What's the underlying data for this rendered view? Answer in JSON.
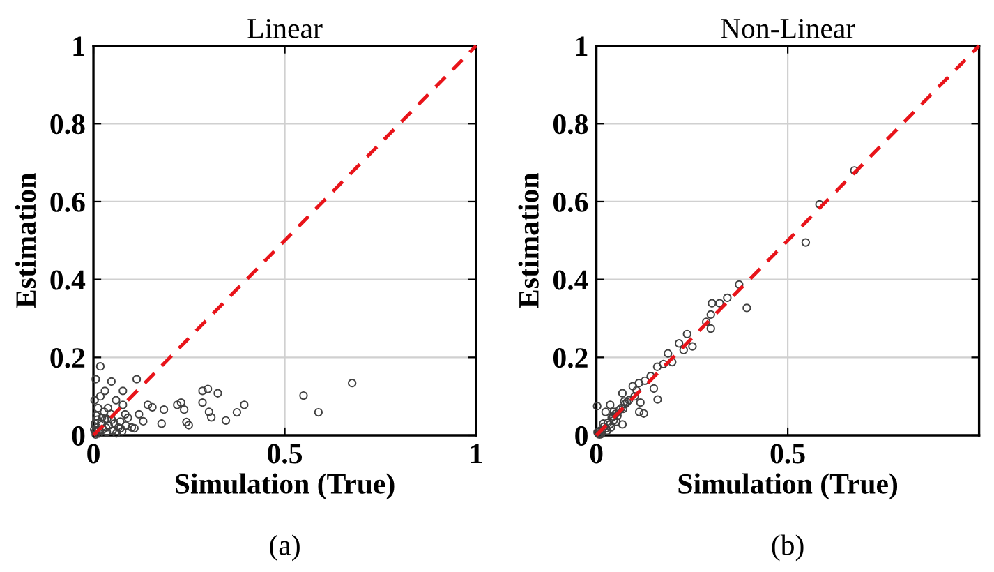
{
  "chart_data": [
    {
      "type": "scatter",
      "title": "Linear",
      "xlabel": "Simulation (True)",
      "ylabel": "Estimation",
      "annotations": [
        "(a)"
      ],
      "xlim": [
        0,
        1
      ],
      "ylim": [
        0,
        1
      ],
      "xticks": [
        0,
        0.5,
        1
      ],
      "yticks": [
        0,
        0.2,
        0.4,
        0.6,
        0.8,
        1
      ],
      "grid": true,
      "marker": "circle",
      "series": [
        {
          "color": "#404040",
          "x": [
            0.018,
            0.006,
            0.047,
            0.113,
            0.077,
            0.03,
            0.285,
            0.299,
            0.325,
            0.549,
            0.676,
            0.588,
            0.394,
            0.375,
            0.346,
            0.302,
            0.308,
            0.285,
            0.229,
            0.237,
            0.219,
            0.243,
            0.249,
            0.178,
            0.184,
            0.154,
            0.142,
            0.119,
            0.077,
            0.083,
            0.059,
            0.13,
            0.107,
            0.071,
            0.036,
            0.005,
            0.01,
            0.015,
            0.02,
            0.008,
            0.012,
            0.025,
            0.03,
            0.035,
            0.04,
            0.045,
            0.05,
            0.055,
            0.06,
            0.065,
            0.003,
            0.018,
            0.028,
            0.004,
            0.022,
            0.038,
            0.07,
            0.075,
            0.085,
            0.09,
            0.1,
            0.01,
            0.002,
            0.006,
            0.014,
            0.033,
            0.048
          ],
          "values": [
            0.177,
            0.144,
            0.138,
            0.144,
            0.114,
            0.114,
            0.114,
            0.119,
            0.108,
            0.102,
            0.134,
            0.059,
            0.078,
            0.059,
            0.038,
            0.06,
            0.046,
            0.084,
            0.084,
            0.066,
            0.078,
            0.034,
            0.026,
            0.03,
            0.066,
            0.072,
            0.078,
            0.054,
            0.078,
            0.054,
            0.09,
            0.036,
            0.018,
            0.018,
            0.042,
            0.01,
            0.02,
            0.005,
            0.03,
            0.05,
            0.07,
            0.015,
            0.04,
            0.008,
            0.025,
            0.055,
            0.012,
            0.03,
            0.005,
            0.02,
            0.09,
            0.1,
            0.06,
            0.03,
            0.045,
            0.07,
            0.035,
            0.01,
            0.025,
            0.045,
            0.02,
            0.04,
            0.015,
            0.002,
            0.012,
            0.02,
            0.04
          ]
        },
        {
          "type": "line",
          "color": "#e8141a",
          "line_style": "dashed",
          "marker": "none",
          "x": [
            0,
            1
          ],
          "values": [
            0,
            1
          ]
        }
      ]
    },
    {
      "type": "scatter",
      "title": "Non-Linear",
      "xlabel": "Simulation (True)",
      "ylabel": "Estimation",
      "annotations": [
        "(b)"
      ],
      "xlim": [
        0,
        1
      ],
      "ylim": [
        0,
        1
      ],
      "xticks": [
        0,
        0.5
      ],
      "yticks": [
        0,
        0.2,
        0.4,
        0.6,
        0.8,
        1
      ],
      "grid": true,
      "marker": "circle",
      "series": [
        {
          "color": "#404040",
          "x": [
            0.674,
            0.583,
            0.547,
            0.393,
            0.373,
            0.342,
            0.322,
            0.302,
            0.299,
            0.287,
            0.299,
            0.237,
            0.251,
            0.216,
            0.228,
            0.198,
            0.187,
            0.175,
            0.159,
            0.16,
            0.15,
            0.142,
            0.127,
            0.111,
            0.095,
            0.115,
            0.124,
            0.112,
            0.073,
            0.068,
            0.036,
            0.002,
            0.024,
            0.044,
            0.068,
            0.005,
            0.01,
            0.015,
            0.02,
            0.025,
            0.03,
            0.035,
            0.04,
            0.045,
            0.05,
            0.055,
            0.06,
            0.065,
            0.07,
            0.075,
            0.08,
            0.085,
            0.012,
            0.018,
            0.028,
            0.038,
            0.003,
            0.008,
            0.045,
            0.052,
            0.1,
            0.105
          ],
          "values": [
            0.68,
            0.593,
            0.495,
            0.327,
            0.387,
            0.353,
            0.339,
            0.339,
            0.31,
            0.291,
            0.274,
            0.26,
            0.228,
            0.236,
            0.219,
            0.188,
            0.21,
            0.183,
            0.176,
            0.092,
            0.12,
            0.152,
            0.14,
            0.134,
            0.126,
            0.084,
            0.056,
            0.06,
            0.087,
            0.108,
            0.078,
            0.075,
            0.06,
            0.048,
            0.028,
            0.004,
            0.012,
            0.01,
            0.022,
            0.018,
            0.032,
            0.028,
            0.045,
            0.038,
            0.055,
            0.05,
            0.065,
            0.07,
            0.068,
            0.08,
            0.085,
            0.09,
            0.003,
            0.03,
            0.012,
            0.02,
            0.008,
            0.002,
            0.06,
            0.035,
            0.1,
            0.115
          ]
        },
        {
          "type": "line",
          "color": "#e8141a",
          "line_style": "dashed",
          "marker": "none",
          "x": [
            0,
            1
          ],
          "values": [
            0,
            1
          ]
        }
      ]
    }
  ]
}
